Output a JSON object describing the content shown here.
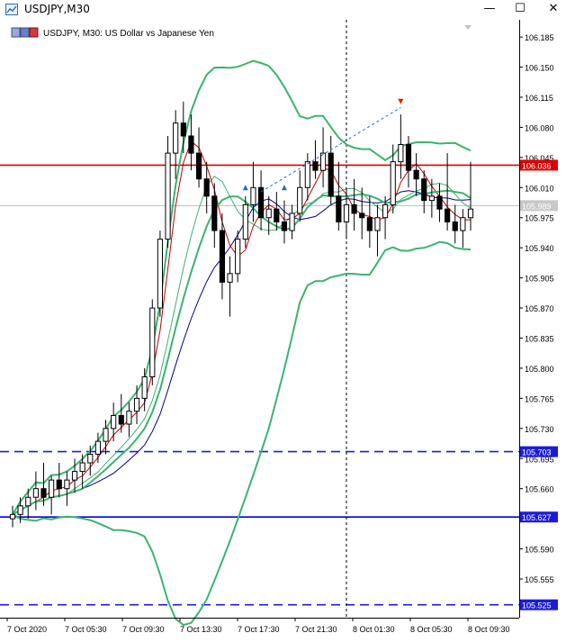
{
  "window": {
    "title": "USDJPY,M30",
    "minimize_glyph": "—",
    "maximize_glyph": "☐",
    "close_glyph": "✕"
  },
  "chart_header": {
    "label": "USDJPY, M30:  US Dollar vs Japanese Yen",
    "icon": "chart-window-icon"
  },
  "colors": {
    "background": "#ffffff",
    "grid": "#c8c8c8",
    "bull_candle": "#ffffff",
    "bear_candle": "#000000",
    "bollinger": "#3cb371",
    "ma_red": "#c00000",
    "ma_green": "#3cb371",
    "ma_blue": "#00008b",
    "hline_red": "#dd0000",
    "hline_blue": "#0000dd",
    "hline_dashed": "#1c1cd8",
    "price_line": "#bbbbbb"
  },
  "chart_data": {
    "type": "candlestick",
    "symbol": "USDJPY",
    "timeframe": "M30",
    "title": "USDJPY, M30:  US Dollar vs Japanese Yen",
    "ylim": [
      105.51,
      106.205
    ],
    "y_ticks": [
      "106.185",
      "106.150",
      "106.115",
      "106.080",
      "106.045",
      "106.010",
      "105.975",
      "105.940",
      "105.905",
      "105.870",
      "105.835",
      "105.800",
      "105.765",
      "105.730",
      "105.695",
      "105.660",
      "105.625",
      "105.590",
      "105.555"
    ],
    "x_ticks": [
      "7 Oct 2020",
      "7 Oct 05:30",
      "7 Oct 09:30",
      "7 Oct 13:30",
      "7 Oct 17:30",
      "7 Oct 21:30",
      "8 Oct 01:30",
      "8 Oct 05:30",
      "8 Oct 09:30"
    ],
    "price_labels": [
      {
        "text": "106.036",
        "value": 106.036,
        "style": "red"
      },
      {
        "text": "105.989",
        "value": 105.989,
        "style": "current"
      },
      {
        "text": "105.703",
        "value": 105.703,
        "style": "blue-dashed"
      },
      {
        "text": "105.627",
        "value": 105.627,
        "style": "blue"
      },
      {
        "text": "105.525",
        "value": 105.525,
        "style": "blue-dashed"
      }
    ],
    "horizontal_lines": [
      {
        "value": 106.036,
        "style": "solid",
        "color": "red"
      },
      {
        "value": 105.703,
        "style": "dashed",
        "color": "blue"
      },
      {
        "value": 105.627,
        "style": "solid",
        "color": "blue"
      },
      {
        "value": 105.525,
        "style": "dashed",
        "color": "blue"
      },
      {
        "value": 105.989,
        "style": "solid",
        "color": "gray"
      }
    ],
    "candles": [
      [
        105.625,
        105.64,
        105.615,
        105.63
      ],
      [
        105.63,
        105.65,
        105.62,
        105.64
      ],
      [
        105.64,
        105.66,
        105.625,
        105.65
      ],
      [
        105.65,
        105.68,
        105.635,
        105.66
      ],
      [
        105.66,
        105.69,
        105.64,
        105.65
      ],
      [
        105.65,
        105.675,
        105.63,
        105.67
      ],
      [
        105.67,
        105.69,
        105.65,
        105.66
      ],
      [
        105.66,
        105.68,
        105.64,
        105.67
      ],
      [
        105.67,
        105.695,
        105.655,
        105.68
      ],
      [
        105.68,
        105.7,
        105.66,
        105.69
      ],
      [
        105.69,
        105.71,
        105.675,
        105.7
      ],
      [
        105.7,
        105.725,
        105.69,
        105.715
      ],
      [
        105.715,
        105.74,
        105.7,
        105.73
      ],
      [
        105.73,
        105.76,
        105.715,
        105.745
      ],
      [
        105.745,
        105.77,
        105.725,
        105.735
      ],
      [
        105.735,
        105.76,
        105.72,
        105.75
      ],
      [
        105.75,
        105.78,
        105.735,
        105.765
      ],
      [
        105.765,
        105.8,
        105.75,
        105.79
      ],
      [
        105.79,
        105.88,
        105.78,
        105.87
      ],
      [
        105.87,
        105.96,
        105.86,
        105.95
      ],
      [
        105.95,
        106.07,
        105.94,
        106.05
      ],
      [
        106.05,
        106.1,
        106.02,
        106.085
      ],
      [
        106.085,
        106.11,
        106.05,
        106.07
      ],
      [
        106.07,
        106.095,
        106.03,
        106.05
      ],
      [
        106.05,
        106.08,
        106.01,
        106.02
      ],
      [
        106.02,
        106.04,
        105.98,
        106.0
      ],
      [
        106.0,
        106.015,
        105.94,
        105.96
      ],
      [
        105.96,
        105.98,
        105.88,
        105.9
      ],
      [
        105.9,
        105.93,
        105.86,
        105.91
      ],
      [
        105.91,
        105.96,
        105.9,
        105.95
      ],
      [
        105.95,
        106.0,
        105.94,
        105.99
      ],
      [
        105.99,
        106.04,
        105.97,
        106.01
      ],
      [
        106.01,
        106.03,
        105.96,
        105.975
      ],
      [
        105.975,
        106.0,
        105.955,
        105.985
      ],
      [
        105.985,
        106.005,
        105.96,
        105.97
      ],
      [
        105.97,
        105.995,
        105.945,
        105.96
      ],
      [
        105.96,
        105.99,
        105.95,
        105.98
      ],
      [
        105.98,
        106.03,
        105.97,
        106.01
      ],
      [
        106.01,
        106.05,
        105.995,
        106.04
      ],
      [
        106.04,
        106.065,
        106.02,
        106.03
      ],
      [
        106.03,
        106.08,
        106.01,
        106.05
      ],
      [
        106.05,
        106.07,
        105.99,
        106.0
      ],
      [
        106.0,
        106.04,
        105.96,
        105.97
      ],
      [
        105.97,
        106.01,
        105.95,
        105.99
      ],
      [
        105.99,
        106.02,
        105.96,
        105.98
      ],
      [
        105.98,
        106.01,
        105.95,
        105.975
      ],
      [
        105.975,
        106.0,
        105.94,
        105.96
      ],
      [
        105.96,
        105.99,
        105.93,
        105.975
      ],
      [
        105.975,
        106.0,
        105.95,
        105.99
      ],
      [
        105.99,
        106.06,
        105.98,
        106.04
      ],
      [
        106.04,
        106.095,
        106.02,
        106.06
      ],
      [
        106.06,
        106.07,
        106.01,
        106.03
      ],
      [
        106.03,
        106.05,
        106.0,
        106.02
      ],
      [
        106.02,
        106.03,
        105.98,
        105.995
      ],
      [
        105.995,
        106.02,
        105.975,
        106.0
      ],
      [
        106.0,
        106.015,
        105.97,
        105.985
      ],
      [
        105.985,
        106.05,
        105.96,
        105.97
      ],
      [
        105.97,
        105.99,
        105.945,
        105.96
      ],
      [
        105.96,
        105.985,
        105.94,
        105.975
      ],
      [
        105.975,
        106.04,
        105.96,
        105.985
      ]
    ],
    "arrows": [
      {
        "candle": 30,
        "value": 106.01,
        "dir": "up",
        "color": "#1f6fbf"
      },
      {
        "candle": 35,
        "value": 106.01,
        "dir": "up",
        "color": "#1f6fbf"
      },
      {
        "candle": 50,
        "value": 106.11,
        "dir": "down",
        "color": "#dd2200"
      }
    ],
    "trend_line": {
      "from": [
        32,
        106.005
      ],
      "to": [
        50,
        106.103
      ]
    },
    "vertical_marker_candle": 43
  }
}
